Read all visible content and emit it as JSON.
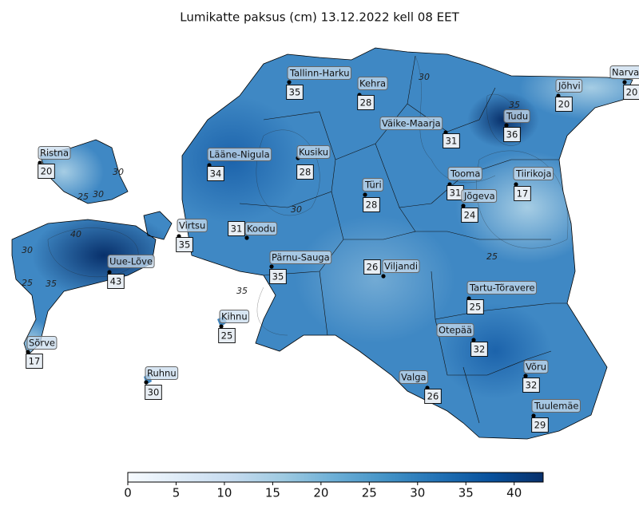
{
  "title": "Lumikatte paksus (cm) 13.12.2022 kell 08 EET",
  "stations": [
    {
      "name": "Tallinn-Harku",
      "value": 35
    },
    {
      "name": "Kehra",
      "value": 28
    },
    {
      "name": "Narva",
      "value": 20
    },
    {
      "name": "Jõhvi",
      "value": 20
    },
    {
      "name": "Väike-Maarja",
      "value": 31
    },
    {
      "name": "Tudu",
      "value": 36
    },
    {
      "name": "Ristna",
      "value": 20
    },
    {
      "name": "Lääne-Nigula",
      "value": 34
    },
    {
      "name": "Kusiku",
      "value": 28
    },
    {
      "name": "Tooma",
      "value": 31
    },
    {
      "name": "Tiirikoja",
      "value": 17
    },
    {
      "name": "Türi",
      "value": 28
    },
    {
      "name": "Jõgeva",
      "value": 24
    },
    {
      "name": "Virtsu",
      "value": 35
    },
    {
      "name": "Koodu",
      "value": 31
    },
    {
      "name": "Uue-Lõve",
      "value": 43
    },
    {
      "name": "Pärnu-Sauga",
      "value": 35
    },
    {
      "name": "Viljandi",
      "value": 26
    },
    {
      "name": "Tartu-Tõravere",
      "value": 25
    },
    {
      "name": "Kihnu",
      "value": 25
    },
    {
      "name": "Sõrve",
      "value": 17
    },
    {
      "name": "Otepää",
      "value": 32
    },
    {
      "name": "Ruhnu",
      "value": 30
    },
    {
      "name": "Valga",
      "value": 26
    },
    {
      "name": "Võru",
      "value": 32
    },
    {
      "name": "Tuulemäe",
      "value": 29
    }
  ],
  "contour_labels": [
    "30",
    "35",
    "30",
    "25",
    "30",
    "40",
    "30",
    "25",
    "35",
    "30",
    "25",
    "35"
  ],
  "colorbar": {
    "lim": [
      0,
      43
    ],
    "ticks": [
      0,
      5,
      10,
      15,
      20,
      25,
      30,
      35,
      40
    ],
    "colors": [
      "#f7fbff",
      "#deebf7",
      "#c6dbef",
      "#9ecae1",
      "#6baed6",
      "#4292c6",
      "#2171b5",
      "#08519c",
      "#08306b"
    ]
  }
}
